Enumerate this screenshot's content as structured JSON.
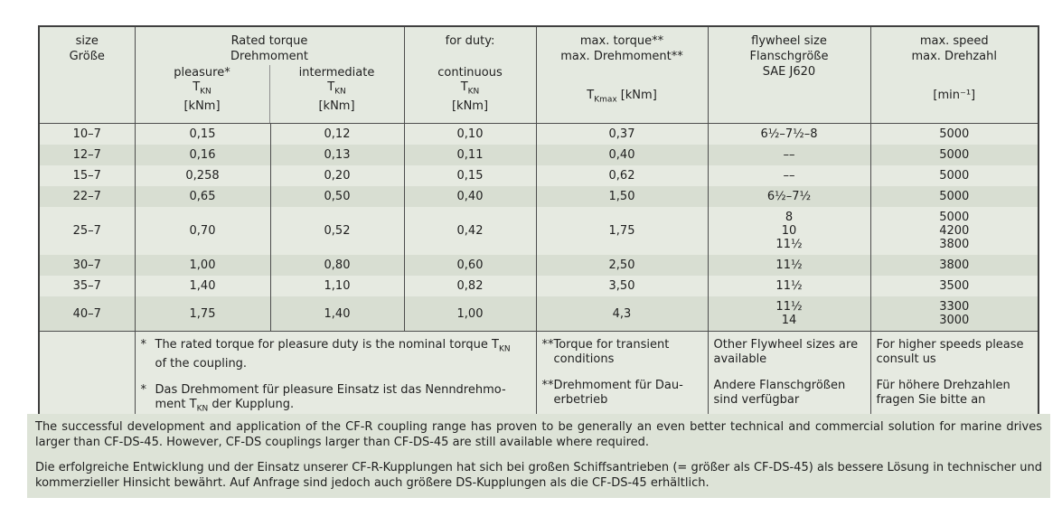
{
  "colors": {
    "page_background": "#ffffff",
    "row_light": "#e6eae1",
    "row_dark": "#d8ded2",
    "header_background": "#e4e9e0",
    "notes_background": "#dde3d7",
    "border_dark": "#3f3f3f",
    "border_thin": "#8f8f8f",
    "text": "#1f1f1f"
  },
  "table": {
    "header": {
      "size": {
        "en": "size",
        "de": "Größe"
      },
      "rated": {
        "en": "Rated torque",
        "de": "Drehmoment",
        "sub": [
          {
            "label": "pleasure*",
            "symbol": "T",
            "sub": "KN",
            "unit": "[kNm]"
          },
          {
            "label": "intermediate",
            "symbol": "T",
            "sub": "KN",
            "unit": "[kNm]"
          }
        ]
      },
      "duty": {
        "label": "for duty:",
        "sub": {
          "label": "continuous",
          "symbol": "T",
          "sub": "KN",
          "unit": "[kNm]"
        }
      },
      "max_torque": {
        "en": "max. torque**",
        "de": "max. Drehmoment**",
        "symbol": "T",
        "sub": "Kmax",
        "unit": "[kNm]"
      },
      "flywheel": {
        "en": "flywheel size",
        "de": "Flanschgröße",
        "std": "SAE J620"
      },
      "speed": {
        "en": "max. speed",
        "de": "max. Drehzahl",
        "unit": "[min⁻¹]"
      }
    },
    "rows": [
      {
        "size": "10–7",
        "pleasure": "0,15",
        "intermediate": "0,12",
        "continuous": "0,10",
        "max_torque": "0,37",
        "flywheel": [
          "6½–7½–8"
        ],
        "speed": [
          "5000"
        ]
      },
      {
        "size": "12–7",
        "pleasure": "0,16",
        "intermediate": "0,13",
        "continuous": "0,11",
        "max_torque": "0,40",
        "flywheel": [
          "––"
        ],
        "speed": [
          "5000"
        ]
      },
      {
        "size": "15–7",
        "pleasure": "0,258",
        "intermediate": "0,20",
        "continuous": "0,15",
        "max_torque": "0,62",
        "flywheel": [
          "––"
        ],
        "speed": [
          "5000"
        ]
      },
      {
        "size": "22–7",
        "pleasure": "0,65",
        "intermediate": "0,50",
        "continuous": "0,40",
        "max_torque": "1,50",
        "flywheel": [
          "6½–7½"
        ],
        "speed": [
          "5000"
        ]
      },
      {
        "size": "25–7",
        "pleasure": "0,70",
        "intermediate": "0,52",
        "continuous": "0,42",
        "max_torque": "1,75",
        "flywheel": [
          "8",
          "10",
          "11½"
        ],
        "speed": [
          "5000",
          "4200",
          "3800"
        ]
      },
      {
        "size": "30–7",
        "pleasure": "1,00",
        "intermediate": "0,80",
        "continuous": "0,60",
        "max_torque": "2,50",
        "flywheel": [
          "11½"
        ],
        "speed": [
          "3800"
        ]
      },
      {
        "size": "35–7",
        "pleasure": "1,40",
        "intermediate": "1,10",
        "continuous": "0,82",
        "max_torque": "3,50",
        "flywheel": [
          "11½"
        ],
        "speed": [
          "3500"
        ]
      },
      {
        "size": "40–7",
        "pleasure": "1,75",
        "intermediate": "1,40",
        "continuous": "1,00",
        "max_torque": "4,3",
        "flywheel": [
          "11½",
          "14"
        ],
        "speed": [
          "3300",
          "3000"
        ]
      }
    ],
    "footnotes": {
      "rated": [
        {
          "marker": "*",
          "lines": [
            [
              {
                "t": "The rated torque for pleasure duty is the nominal torque T"
              },
              {
                "sub": "KN"
              }
            ],
            [
              {
                "t": "of the coupling."
              }
            ]
          ]
        },
        {
          "marker": "*",
          "lines": [
            [
              {
                "t": "Das Drehmoment für pleasure Einsatz ist das Nenndrehmo-"
              }
            ],
            [
              {
                "t": "ment T"
              },
              {
                "sub": "KN"
              },
              {
                "t": " der Kupplung."
              }
            ]
          ]
        }
      ],
      "max_torque": [
        {
          "lines": [
            "**Torque for transient",
            "conditions"
          ]
        },
        {
          "lines": [
            "**Drehmoment für Dau-",
            "erbetrieb"
          ]
        }
      ],
      "flywheel": [
        {
          "lines": [
            "Other Flywheel sizes are",
            "available"
          ]
        },
        {
          "lines": [
            "Andere Flanschgrößen",
            "sind verfügbar"
          ]
        }
      ],
      "speed": [
        {
          "lines": [
            "For higher speeds please",
            "consult us"
          ]
        },
        {
          "lines": [
            "Für höhere Drehzahlen",
            "fragen Sie bitte an"
          ]
        }
      ]
    }
  },
  "notes": {
    "en": "The successful development and application of the CF-R coupling range has proven to be generally an even better technical and commercial solution for marine drives larger than CF-DS-45. However, CF-DS couplings larger than CF-DS-45 are still available where required.",
    "de": "Die erfolgreiche Entwicklung und der Einsatz unserer CF-R-Kupplungen hat sich bei großen Schiffsantrieben (= größer als CF-DS-45) als bessere Lösung in technischer und kommerzieller Hinsicht bewährt. Auf Anfrage sind jedoch auch größere DS-Kupplungen als die CF-DS-45 erhältlich."
  }
}
